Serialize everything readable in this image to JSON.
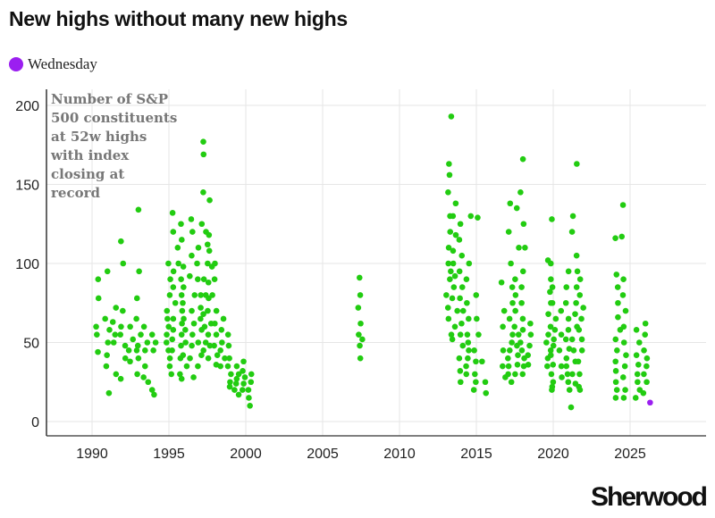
{
  "title": "New highs without many new highs",
  "brand": "Sherwood",
  "chart_data": {
    "type": "scatter",
    "title": "New highs without many new highs",
    "annotation": [
      "Number of S&P",
      "500 constituents",
      "at 52w highs",
      "with index",
      "closing at",
      "record"
    ],
    "xlim": [
      1987,
      2030
    ],
    "ylim": [
      -10,
      210
    ],
    "x_ticks": [
      1990,
      1995,
      2000,
      2005,
      2010,
      2015,
      2020,
      2025
    ],
    "y_ticks": [
      0,
      50,
      100,
      150,
      200
    ],
    "grid": true,
    "legend": {
      "placement": "top-left",
      "entries": [
        {
          "name": "Wednesday",
          "color": "#9b1ff0"
        }
      ]
    },
    "colors": {
      "points": "#22cc11",
      "highlight": "#9b1ff0"
    },
    "series": [
      {
        "color": "#22cc11",
        "columns": [
          {
            "x": 1990.4,
            "y": [
              90,
              78,
              60,
              55,
              44
            ]
          },
          {
            "x": 1991.0,
            "y": [
              95,
              65,
              58,
              50,
              42,
              35,
              18
            ]
          },
          {
            "x": 1991.5,
            "y": [
              72,
              63,
              55,
              50,
              30
            ]
          },
          {
            "x": 1992.0,
            "y": [
              114,
              100,
              70,
              60,
              55,
              48,
              40,
              27
            ]
          },
          {
            "x": 1992.5,
            "y": [
              60,
              52,
              45,
              38
            ]
          },
          {
            "x": 1993.0,
            "y": [
              134,
              95,
              78,
              65,
              55,
              48,
              45,
              40,
              30
            ]
          },
          {
            "x": 1993.5,
            "y": [
              60,
              50,
              45,
              35,
              28,
              25
            ]
          },
          {
            "x": 1994.0,
            "y": [
              55,
              50,
              45,
              20,
              17
            ]
          },
          {
            "x": 1995.0,
            "y": [
              100,
              90,
              80,
              70,
              65,
              60,
              55,
              50,
              45,
              40,
              35,
              30
            ]
          },
          {
            "x": 1995.3,
            "y": [
              132,
              120,
              95,
              85,
              75,
              65,
              58,
              52,
              45
            ]
          },
          {
            "x": 1995.7,
            "y": [
              125,
              110,
              100,
              90,
              80,
              70,
              62,
              55,
              48,
              40,
              30
            ]
          },
          {
            "x": 1996.0,
            "y": [
              115,
              98,
              85,
              75,
              65,
              58,
              50,
              42,
              35,
              27
            ]
          },
          {
            "x": 1996.5,
            "y": [
              128,
              120,
              105,
              92,
              80,
              70,
              62,
              55,
              48,
              40,
              28
            ]
          },
          {
            "x": 1997.0,
            "y": [
              125,
              110,
              100,
              90,
              80,
              72,
              65,
              58,
              50,
              42,
              35
            ]
          },
          {
            "x": 1997.4,
            "y": [
              177,
              169,
              145,
              120,
              112,
              100,
              90,
              80,
              68,
              60,
              50,
              45
            ]
          },
          {
            "x": 1997.7,
            "y": [
              140,
              118,
              108,
              98,
              88,
              78,
              70,
              62,
              55,
              48,
              40
            ]
          },
          {
            "x": 1998.0,
            "y": [
              100,
              90,
              80,
              70,
              62,
              55,
              48,
              42,
              36
            ]
          },
          {
            "x": 1998.5,
            "y": [
              65,
              58,
              50,
              45,
              40,
              35
            ]
          },
          {
            "x": 1999.0,
            "y": [
              55,
              48,
              40,
              35,
              30,
              25,
              22
            ]
          },
          {
            "x": 1999.4,
            "y": [
              35,
              30,
              27,
              24,
              20,
              17
            ]
          },
          {
            "x": 1999.8,
            "y": [
              38,
              32,
              28,
              24,
              20
            ]
          },
          {
            "x": 2000.2,
            "y": [
              30,
              25,
              20,
              15,
              10
            ]
          },
          {
            "x": 2007.3,
            "y": [
              91,
              80,
              72,
              62,
              55,
              48
            ]
          },
          {
            "x": 2007.6,
            "y": [
              52,
              40
            ]
          },
          {
            "x": 2013.2,
            "y": [
              193,
              163,
              156,
              145,
              130,
              120,
              110,
              100,
              95,
              90,
              80,
              72,
              65,
              55
            ]
          },
          {
            "x": 2013.6,
            "y": [
              138,
              130,
              118,
              108,
              100,
              92,
              85,
              78,
              70,
              60,
              52
            ]
          },
          {
            "x": 2014.0,
            "y": [
              125,
              115,
              105,
              95,
              85,
              78,
              70,
              62,
              55,
              48,
              40,
              32,
              25
            ]
          },
          {
            "x": 2014.5,
            "y": [
              130,
              100,
              90,
              75,
              65,
              55,
              50,
              45,
              40,
              35,
              30
            ]
          },
          {
            "x": 2015.0,
            "y": [
              129,
              80,
              65,
              55,
              45,
              38,
              30,
              25,
              20
            ]
          },
          {
            "x": 2015.5,
            "y": [
              38,
              25,
              18
            ]
          },
          {
            "x": 2016.8,
            "y": [
              88,
              70,
              60,
              45,
              35,
              28
            ]
          },
          {
            "x": 2017.2,
            "y": [
              138,
              120,
              100,
              85,
              75,
              65,
              55,
              50,
              45,
              40,
              35,
              30,
              25
            ]
          },
          {
            "x": 2017.6,
            "y": [
              135,
              110,
              90,
              80,
              70,
              60,
              55,
              48,
              42,
              36,
              30
            ]
          },
          {
            "x": 2018.0,
            "y": [
              166,
              145,
              125,
              110,
              95,
              85,
              75,
              65,
              58,
              50,
              45,
              40,
              35,
              30
            ]
          },
          {
            "x": 2018.5,
            "y": [
              62,
              55,
              48,
              42,
              36
            ]
          },
          {
            "x": 2019.7,
            "y": [
              102,
              90,
              82,
              75,
              68,
              60,
              55,
              50,
              45,
              40,
              35
            ]
          },
          {
            "x": 2020.0,
            "y": [
              128,
              100,
              85,
              75,
              65,
              58,
              52,
              48,
              42,
              36,
              30,
              25,
              22,
              20
            ]
          },
          {
            "x": 2020.5,
            "y": [
              70,
              55,
              45,
              35,
              28
            ]
          },
          {
            "x": 2021.0,
            "y": [
              95,
              85,
              75,
              65,
              58,
              52,
              46,
              40,
              35,
              30,
              25,
              20,
              9
            ]
          },
          {
            "x": 2021.4,
            "y": [
              163,
              130,
              120,
              105,
              95,
              85,
              75,
              68,
              60,
              52,
              45,
              38,
              30,
              24
            ]
          },
          {
            "x": 2021.8,
            "y": [
              90,
              80,
              72,
              65,
              58,
              52,
              45,
              38,
              30,
              22,
              20
            ]
          },
          {
            "x": 2024.2,
            "y": [
              116,
              93,
              85,
              75,
              66,
              58,
              52,
              45,
              38,
              32,
              25,
              20,
              15
            ]
          },
          {
            "x": 2024.6,
            "y": [
              137,
              117,
              90,
              80,
              70,
              60,
              50,
              42,
              35,
              28,
              20,
              15
            ]
          },
          {
            "x": 2025.5,
            "y": [
              58,
              50,
              42,
              36,
              30,
              25,
              20,
              15
            ]
          },
          {
            "x": 2026.0,
            "y": [
              62,
              55,
              45,
              40,
              35,
              30,
              25,
              18
            ]
          }
        ]
      },
      {
        "name": "Wednesday",
        "color": "#9b1ff0",
        "columns": [
          {
            "x": 2026.3,
            "y": [
              12
            ]
          }
        ]
      }
    ]
  }
}
